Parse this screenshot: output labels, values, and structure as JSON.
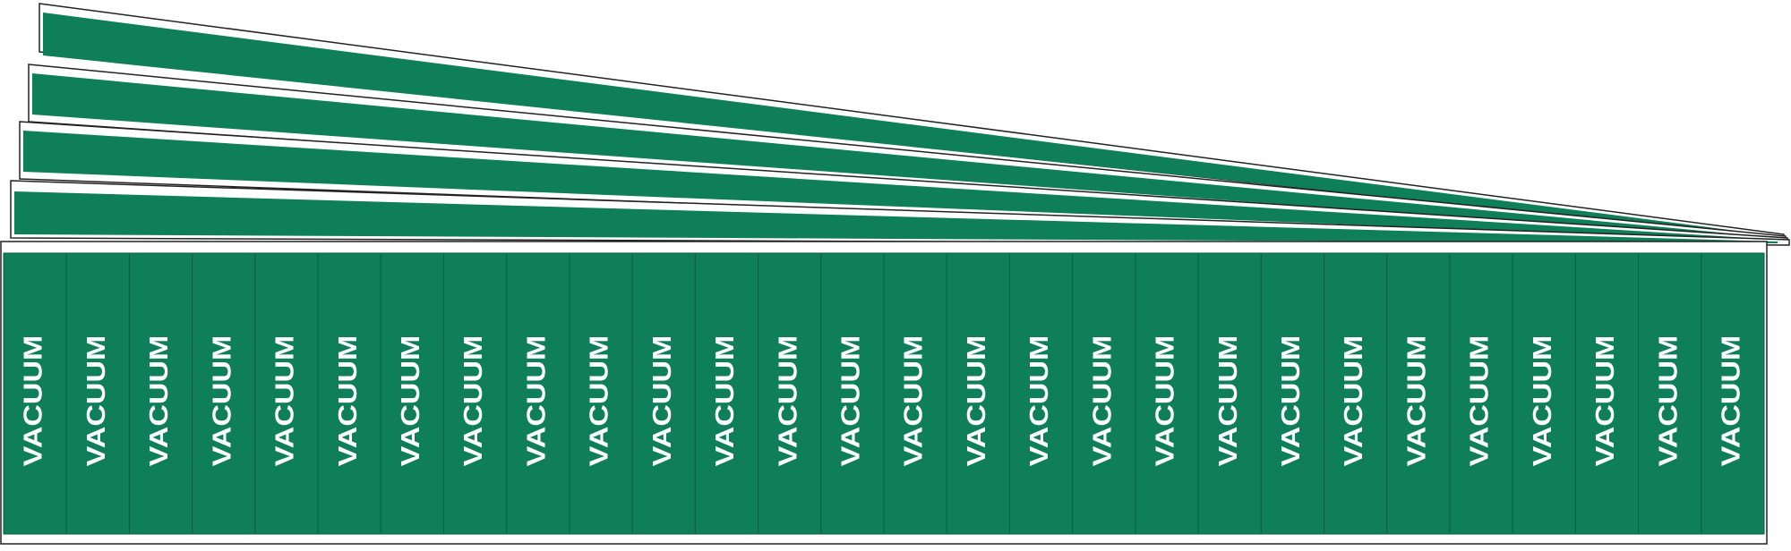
{
  "sheet": {
    "labels": [
      "VACUUM",
      "VACUUM",
      "VACUUM",
      "VACUUM",
      "VACUUM",
      "VACUUM",
      "VACUUM",
      "VACUUM",
      "VACUUM",
      "VACUUM",
      "VACUUM",
      "VACUUM",
      "VACUUM",
      "VACUUM",
      "VACUUM",
      "VACUUM",
      "VACUUM",
      "VACUUM",
      "VACUUM",
      "VACUUM",
      "VACUUM",
      "VACUUM",
      "VACUUM",
      "VACUUM",
      "VACUUM",
      "VACUUM",
      "VACUUM",
      "VACUUM"
    ]
  }
}
